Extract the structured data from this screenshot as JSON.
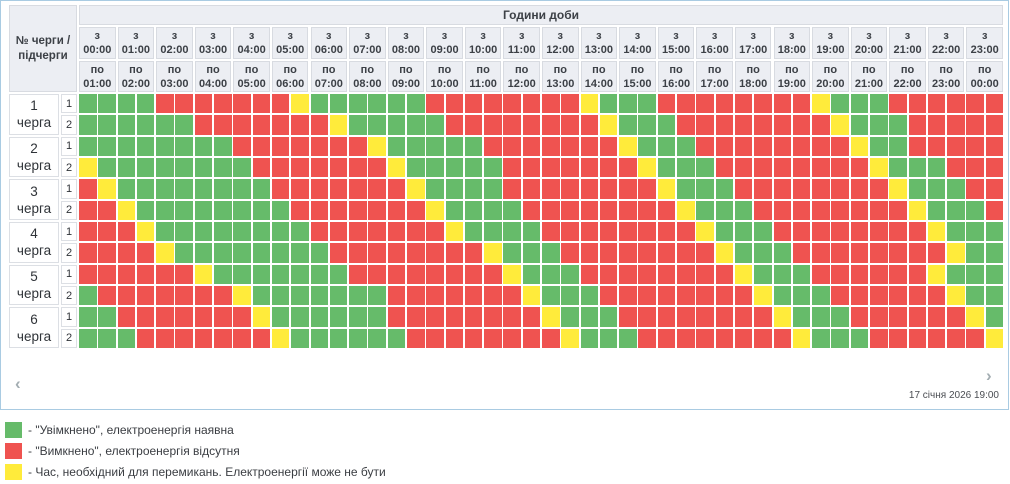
{
  "widget": {
    "title": "Години доби",
    "corner_label_line1": "№ черги /",
    "corner_label_line2": "підчерги",
    "from_prefix": "з",
    "to_prefix": "по",
    "hours": [
      {
        "from": "00:00",
        "to": "01:00"
      },
      {
        "from": "01:00",
        "to": "02:00"
      },
      {
        "from": "02:00",
        "to": "03:00"
      },
      {
        "from": "03:00",
        "to": "04:00"
      },
      {
        "from": "04:00",
        "to": "05:00"
      },
      {
        "from": "05:00",
        "to": "06:00"
      },
      {
        "from": "06:00",
        "to": "07:00"
      },
      {
        "from": "07:00",
        "to": "08:00"
      },
      {
        "from": "08:00",
        "to": "09:00"
      },
      {
        "from": "09:00",
        "to": "10:00"
      },
      {
        "from": "10:00",
        "to": "11:00"
      },
      {
        "from": "11:00",
        "to": "12:00"
      },
      {
        "from": "12:00",
        "to": "13:00"
      },
      {
        "from": "13:00",
        "to": "14:00"
      },
      {
        "from": "14:00",
        "to": "15:00"
      },
      {
        "from": "15:00",
        "to": "16:00"
      },
      {
        "from": "16:00",
        "to": "17:00"
      },
      {
        "from": "17:00",
        "to": "18:00"
      },
      {
        "from": "18:00",
        "to": "19:00"
      },
      {
        "from": "19:00",
        "to": "20:00"
      },
      {
        "from": "20:00",
        "to": "21:00"
      },
      {
        "from": "21:00",
        "to": "22:00"
      },
      {
        "from": "22:00",
        "to": "23:00"
      },
      {
        "from": "23:00",
        "to": "00:00"
      }
    ],
    "queues": [
      {
        "number": "1",
        "label": "черга",
        "sub": [
          {
            "label": "1",
            "cells": "GGGGRRRRRRRYGGGGGGRRRRRRRRYGGGRRRRRRRRYGGGRRRRRR"
          },
          {
            "label": "2",
            "cells": "GGGGGGRRRRRRRYGGGGGRRRRRRRRYGGGRRRRRRRRYGGGRRRRR"
          }
        ]
      },
      {
        "number": "2",
        "label": "черга",
        "sub": [
          {
            "label": "1",
            "cells": "GGGGGGGGRRRRRRRYGGGGGRRRRRRRYGGGRRRRRRRRYGGRRRRR"
          },
          {
            "label": "2",
            "cells": "YGGGGGGGGRRRRRRRYGGGGGRRRRRRRYGGGRRRRRRRRYGGGRRR"
          }
        ]
      },
      {
        "number": "3",
        "label": "черга",
        "sub": [
          {
            "label": "1",
            "cells": "RYGGGGGGGGRRRRRRRYGGGGRRRRRRRRYGGGRRRRRRRRYGGGRR"
          },
          {
            "label": "2",
            "cells": "RRYGGGGGGGGRRRRRRRYGGGGRRRRRRRRYGGGRRRRRRRRYGGGR"
          }
        ]
      },
      {
        "number": "4",
        "label": "черга",
        "sub": [
          {
            "label": "1",
            "cells": "RRRYGGGGGGGGRRRRRRRYGGGGRRRRRRRRYGGGRRRRRRRRYGGG"
          },
          {
            "label": "2",
            "cells": "RRRRYGGGGGGGGRRRRRRRRYGGGRRRRRRRRYGGGRRRRRRRRYGG"
          }
        ]
      },
      {
        "number": "5",
        "label": "черга",
        "sub": [
          {
            "label": "1",
            "cells": "RRRRRRYGGGGGGGRRRRRRRRYGGGRRRRRRRRYGGGRRRRRRYGGG"
          },
          {
            "label": "2",
            "cells": "GRRRRRRRYGGGGGGGRRRRRRRYGGGRRRRRRRRYGGGRRRRRRYGG"
          }
        ]
      },
      {
        "number": "6",
        "label": "черга",
        "sub": [
          {
            "label": "1",
            "cells": "GGRRRRRRRYGGGGGGRRRRRRRRYGGGRRRRRRRRYGGGRRRRRRYG"
          },
          {
            "label": "2",
            "cells": "GGGRRRRRRRYGGGGGGRRRRRRRRYGGGRRRRRRRRYGGGRRRRRRY"
          }
        ]
      }
    ],
    "footer": {
      "prev_icon": "‹",
      "next_icon": "›",
      "timestamp": "17 січня 2026 19:00"
    }
  },
  "legend": [
    {
      "color_key": "on",
      "text": "- \"Увімкнено\", електроенергія наявна"
    },
    {
      "color_key": "off",
      "text": "- \"Вимкнено\", електроенергія відсутня"
    },
    {
      "color_key": "switch",
      "text": "- Час, необхідний для перемикань. Електроенергії може не бути"
    }
  ],
  "colors": {
    "on": "#66bb6a",
    "off": "#ef5350",
    "switch": "#ffeb3b"
  },
  "cell_state_map": {
    "G": "on",
    "R": "off",
    "Y": "switch"
  },
  "cell_state_names": {
    "G": "power-on",
    "R": "power-off",
    "Y": "switching"
  }
}
